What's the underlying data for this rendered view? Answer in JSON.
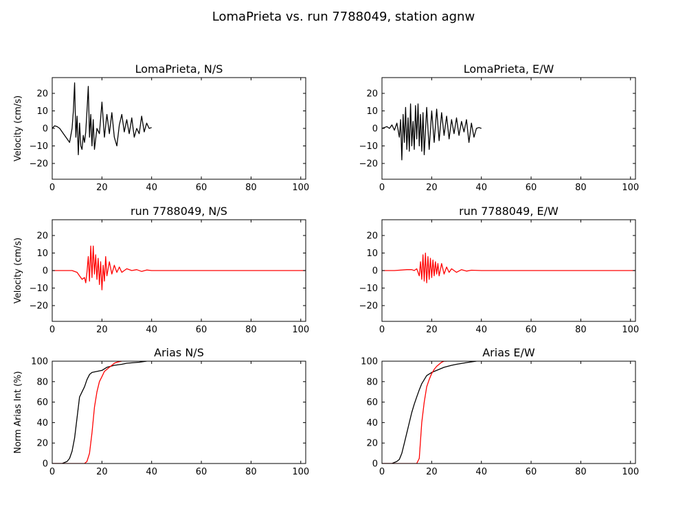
{
  "figure_title": "LomaPrieta vs. run 7788049, station agnw",
  "colors": {
    "recorded": "#000000",
    "simulated": "#ff0000"
  },
  "chart_data": [
    {
      "type": "line",
      "title": "LomaPrieta, N/S",
      "xlabel": "",
      "ylabel": "Velocity (cm/s)",
      "xlim": [
        0,
        102
      ],
      "ylim": [
        -29,
        29
      ],
      "xticks": [
        "0",
        "20",
        "40",
        "60",
        "80",
        "100"
      ],
      "yticks": [
        "20",
        "10",
        "0",
        "−10",
        "−20"
      ],
      "series": [
        {
          "color": "#000000",
          "x": [
            0,
            1,
            2,
            3,
            4,
            5,
            6,
            7,
            8,
            8.5,
            9,
            9.5,
            10,
            10.5,
            11,
            11.5,
            12,
            12.5,
            13,
            13.5,
            14,
            14.5,
            15,
            15.5,
            16,
            16.5,
            17,
            18,
            19,
            20,
            21,
            22,
            23,
            24,
            25,
            26,
            27,
            28,
            29,
            30,
            31,
            32,
            33,
            34,
            35,
            36,
            37,
            38,
            39,
            40
          ],
          "y": [
            0,
            1.5,
            1,
            0,
            -2,
            -4,
            -6,
            -8,
            0,
            10,
            26,
            -5,
            7,
            -15,
            3,
            -10,
            -12,
            -4,
            -8,
            -2,
            10,
            24,
            -5,
            8,
            -10,
            5,
            -12,
            0,
            -3,
            15,
            -5,
            8,
            -3,
            9,
            -5,
            -10,
            2,
            8,
            -2,
            5,
            -3,
            6,
            -5,
            0,
            -3,
            7,
            -2,
            3,
            0,
            0.5
          ]
        }
      ]
    },
    {
      "type": "line",
      "title": "LomaPrieta, E/W",
      "xlabel": "",
      "ylabel": "",
      "xlim": [
        0,
        102
      ],
      "ylim": [
        -29,
        29
      ],
      "xticks": [
        "0",
        "20",
        "40",
        "60",
        "80",
        "100"
      ],
      "yticks": [
        "20",
        "10",
        "0",
        "−10",
        "−20"
      ],
      "series": [
        {
          "color": "#000000",
          "x": [
            0,
            1,
            2,
            3,
            4,
            5,
            6,
            7,
            7.5,
            8,
            8.5,
            9,
            9.5,
            10,
            10.5,
            11,
            11.5,
            12,
            12.5,
            13,
            13.5,
            14,
            14.5,
            15,
            15.5,
            16,
            16.5,
            17,
            18,
            19,
            20,
            21,
            22,
            23,
            24,
            25,
            26,
            27,
            28,
            29,
            30,
            31,
            32,
            33,
            34,
            35,
            36,
            37,
            38,
            39,
            40
          ],
          "y": [
            0,
            0.5,
            1,
            0,
            2,
            -1,
            3,
            -5,
            5,
            -18,
            8,
            -8,
            12,
            -12,
            6,
            -13,
            14,
            -10,
            4,
            -12,
            13,
            -6,
            14,
            -10,
            8,
            -13,
            9,
            -15,
            12,
            -12,
            10,
            -8,
            11,
            -7,
            9,
            -4,
            7,
            -6,
            5,
            -3,
            6,
            -4,
            4,
            -2,
            5,
            -8,
            3,
            -5,
            0,
            0.5,
            0
          ]
        }
      ]
    },
    {
      "type": "line",
      "title": "run 7788049, N/S",
      "xlabel": "",
      "ylabel": "Velocity (cm/s)",
      "xlim": [
        0,
        102
      ],
      "ylim": [
        -29,
        29
      ],
      "xticks": [
        "0",
        "20",
        "40",
        "60",
        "80",
        "100"
      ],
      "yticks": [
        "20",
        "10",
        "0",
        "−10",
        "−20"
      ],
      "series": [
        {
          "color": "#ff0000",
          "x": [
            0,
            5,
            8,
            10,
            11,
            12,
            13,
            13.5,
            14,
            14.5,
            15,
            15.5,
            16,
            16.5,
            17,
            17.5,
            18,
            18.5,
            19,
            19.5,
            20,
            20.5,
            21,
            21.5,
            22,
            23,
            24,
            25,
            26,
            27,
            28,
            30,
            32,
            34,
            36,
            38,
            40,
            45,
            60,
            80,
            102
          ],
          "y": [
            0,
            0,
            0,
            -1,
            -3,
            -5,
            -4,
            -7,
            -1,
            8,
            -6,
            14,
            -4,
            14,
            -2,
            9,
            -5,
            7,
            -8,
            5,
            -11,
            3,
            -6,
            8,
            -3,
            5,
            -2,
            3,
            -1,
            2,
            -1,
            1,
            0,
            0.5,
            -0.5,
            0.3,
            0,
            0,
            0,
            0,
            0
          ]
        }
      ]
    },
    {
      "type": "line",
      "title": "run 7788049, E/W",
      "xlabel": "",
      "ylabel": "",
      "xlim": [
        0,
        102
      ],
      "ylim": [
        -29,
        29
      ],
      "xticks": [
        "0",
        "20",
        "40",
        "60",
        "80",
        "100"
      ],
      "yticks": [
        "20",
        "10",
        "0",
        "−10",
        "−20"
      ],
      "series": [
        {
          "color": "#ff0000",
          "x": [
            0,
            5,
            10,
            12,
            13,
            14,
            15,
            15.5,
            16,
            16.5,
            17,
            17.5,
            18,
            18.5,
            19,
            19.5,
            20,
            20.5,
            21,
            21.5,
            22,
            22.5,
            23,
            24,
            25,
            26,
            27,
            28,
            30,
            32,
            34,
            36,
            40,
            60,
            80,
            102
          ],
          "y": [
            0,
            0,
            0.5,
            0.5,
            0,
            1,
            -3,
            5,
            -5,
            9,
            -6,
            10,
            -7,
            8,
            -5,
            7,
            -4,
            6,
            -3,
            5,
            -2,
            4,
            -3,
            4,
            -2,
            2,
            -1,
            1,
            -1,
            0.5,
            -0.3,
            0.2,
            0,
            0,
            0,
            0
          ]
        }
      ]
    },
    {
      "type": "line",
      "title": "Arias N/S",
      "xlabel": "",
      "ylabel": "Norm Arias Int (%)",
      "xlim": [
        0,
        102
      ],
      "ylim": [
        0,
        100
      ],
      "xticks": [
        "0",
        "20",
        "40",
        "60",
        "80",
        "100"
      ],
      "yticks": [
        "100",
        "80",
        "60",
        "40",
        "20",
        "0"
      ],
      "series": [
        {
          "color": "#000000",
          "x": [
            0,
            4,
            6,
            7,
            8,
            9,
            10,
            11,
            12,
            13,
            14,
            15,
            16,
            18,
            20,
            22,
            25,
            28,
            30,
            35,
            38
          ],
          "y": [
            0,
            0,
            2,
            5,
            12,
            25,
            45,
            65,
            70,
            75,
            82,
            87,
            89,
            90,
            91,
            94,
            96,
            97,
            98,
            99,
            100
          ]
        },
        {
          "color": "#ff0000",
          "x": [
            0,
            13,
            14,
            15,
            16,
            17,
            18,
            19,
            20,
            21,
            22,
            23,
            24,
            25,
            26,
            28
          ],
          "y": [
            0,
            0,
            2,
            10,
            30,
            55,
            70,
            80,
            85,
            90,
            92,
            94,
            96,
            98,
            99,
            100
          ]
        }
      ]
    },
    {
      "type": "line",
      "title": "Arias E/W",
      "xlabel": "",
      "ylabel": "",
      "xlim": [
        0,
        102
      ],
      "ylim": [
        0,
        100
      ],
      "xticks": [
        "0",
        "20",
        "40",
        "60",
        "80",
        "100"
      ],
      "yticks": [
        "100",
        "80",
        "60",
        "40",
        "20",
        "0"
      ],
      "series": [
        {
          "color": "#000000",
          "x": [
            0,
            4,
            6,
            7,
            8,
            9,
            10,
            11,
            12,
            13,
            14,
            15,
            16,
            18,
            20,
            22,
            25,
            28,
            30,
            35,
            38
          ],
          "y": [
            0,
            0,
            2,
            4,
            10,
            20,
            30,
            40,
            50,
            58,
            65,
            72,
            78,
            86,
            89,
            91,
            94,
            96,
            97,
            99,
            100
          ]
        },
        {
          "color": "#ff0000",
          "x": [
            0,
            14,
            15,
            16,
            17,
            18,
            19,
            20,
            21,
            22,
            23,
            24,
            25,
            26
          ],
          "y": [
            0,
            0,
            5,
            40,
            60,
            75,
            82,
            88,
            92,
            95,
            97,
            99,
            100,
            100
          ]
        }
      ]
    }
  ]
}
